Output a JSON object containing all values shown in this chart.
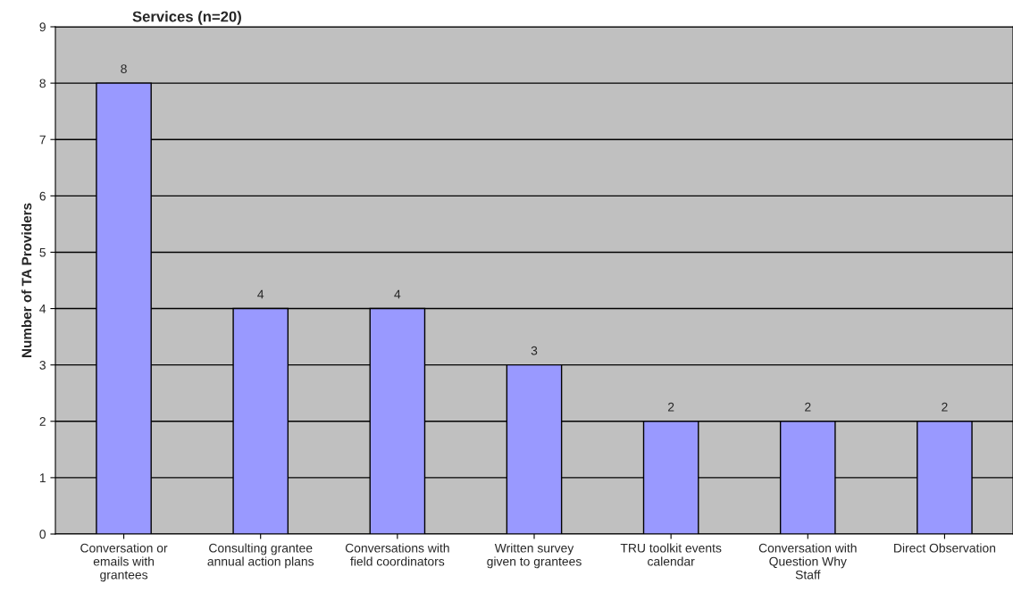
{
  "chart_data": {
    "type": "bar",
    "title": "Services (n=20)",
    "ylabel": "Number of TA Providers",
    "categories": [
      "Conversation or\nemails with\ngrantees",
      "Consulting grantee\nannual action plans",
      "Conversations with\nfield coordinators",
      "Written survey\ngiven to grantees",
      "TRU toolkit events\ncalendar",
      "Conversation with\nQuestion Why\nStaff",
      "Direct Observation"
    ],
    "values": [
      8,
      4,
      4,
      3,
      2,
      2,
      2
    ],
    "color": "#9999ff",
    "ylim": [
      0,
      9
    ],
    "yticks": [
      0,
      1,
      2,
      3,
      4,
      5,
      6,
      7,
      8,
      9
    ],
    "grid": "y",
    "data_labels": true
  }
}
